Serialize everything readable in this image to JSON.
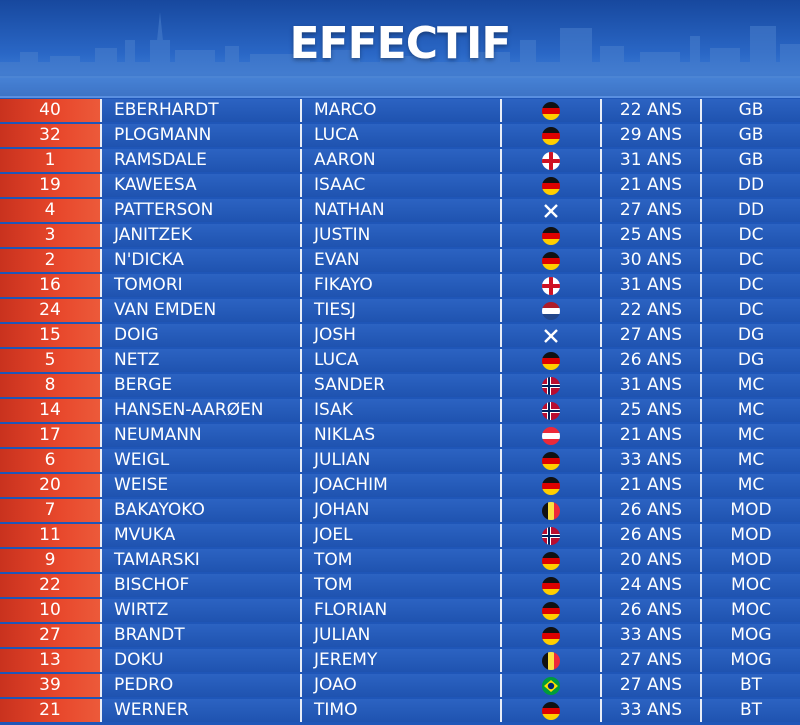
{
  "title": "EFFECTIF",
  "players": [
    {
      "number": "40",
      "last_name": "EBERHARDT",
      "first_name": "MARCO",
      "flag": "germany",
      "age": "22 ANS",
      "position": "GB"
    },
    {
      "number": "32",
      "last_name": "PLOGMANN",
      "first_name": "LUCA",
      "flag": "germany",
      "age": "29 ANS",
      "position": "GB"
    },
    {
      "number": "1",
      "last_name": "RAMSDALE",
      "first_name": "AARON",
      "flag": "england",
      "age": "31 ANS",
      "position": "GB"
    },
    {
      "number": "19",
      "last_name": "KAWEESA",
      "first_name": "ISAAC",
      "flag": "germany",
      "age": "21 ANS",
      "position": "DD"
    },
    {
      "number": "4",
      "last_name": "PATTERSON",
      "first_name": "NATHAN",
      "flag": "scotland",
      "age": "27 ANS",
      "position": "DD"
    },
    {
      "number": "3",
      "last_name": "JANITZEK",
      "first_name": "JUSTIN",
      "flag": "germany",
      "age": "25 ANS",
      "position": "DC"
    },
    {
      "number": "2",
      "last_name": "N'DICKA",
      "first_name": "EVAN",
      "flag": "germany",
      "age": "30 ANS",
      "position": "DC"
    },
    {
      "number": "16",
      "last_name": "TOMORI",
      "first_name": "FIKAYO",
      "flag": "england",
      "age": "31 ANS",
      "position": "DC"
    },
    {
      "number": "24",
      "last_name": "VAN EMDEN",
      "first_name": "TIESJ",
      "flag": "netherlands",
      "age": "22 ANS",
      "position": "DC"
    },
    {
      "number": "15",
      "last_name": "DOIG",
      "first_name": "JOSH",
      "flag": "scotland",
      "age": "27 ANS",
      "position": "DG"
    },
    {
      "number": "5",
      "last_name": "NETZ",
      "first_name": "LUCA",
      "flag": "germany",
      "age": "26 ANS",
      "position": "DG"
    },
    {
      "number": "8",
      "last_name": "BERGE",
      "first_name": "SANDER",
      "flag": "norway",
      "age": "31 ANS",
      "position": "MC"
    },
    {
      "number": "14",
      "last_name": "HANSEN-AARØEN",
      "first_name": "ISAK",
      "flag": "norway",
      "age": "25 ANS",
      "position": "MC"
    },
    {
      "number": "17",
      "last_name": "NEUMANN",
      "first_name": "NIKLAS",
      "flag": "austria",
      "age": "21 ANS",
      "position": "MC"
    },
    {
      "number": "6",
      "last_name": "WEIGL",
      "first_name": "JULIAN",
      "flag": "germany",
      "age": "33 ANS",
      "position": "MC"
    },
    {
      "number": "20",
      "last_name": "WEISE",
      "first_name": "JOACHIM",
      "flag": "germany",
      "age": "21 ANS",
      "position": "MC"
    },
    {
      "number": "7",
      "last_name": "BAKAYOKO",
      "first_name": "JOHAN",
      "flag": "belgium",
      "age": "26 ANS",
      "position": "MOD"
    },
    {
      "number": "11",
      "last_name": "MVUKA",
      "first_name": "JOEL",
      "flag": "norway",
      "age": "26 ANS",
      "position": "MOD"
    },
    {
      "number": "9",
      "last_name": "TAMARSKI",
      "first_name": "TOM",
      "flag": "germany",
      "age": "20 ANS",
      "position": "MOD"
    },
    {
      "number": "22",
      "last_name": "BISCHOF",
      "first_name": "TOM",
      "flag": "germany",
      "age": "24 ANS",
      "position": "MOC"
    },
    {
      "number": "10",
      "last_name": "WIRTZ",
      "first_name": "FLORIAN",
      "flag": "germany",
      "age": "26 ANS",
      "position": "MOC"
    },
    {
      "number": "27",
      "last_name": "BRANDT",
      "first_name": "JULIAN",
      "flag": "germany",
      "age": "33 ANS",
      "position": "MOG"
    },
    {
      "number": "13",
      "last_name": "DOKU",
      "first_name": "JEREMY",
      "flag": "belgium",
      "age": "27 ANS",
      "position": "MOG"
    },
    {
      "number": "39",
      "last_name": "PEDRO",
      "first_name": "JOAO",
      "flag": "brazil",
      "age": "27 ANS",
      "position": "BT"
    },
    {
      "number": "21",
      "last_name": "WERNER",
      "first_name": "TIMO",
      "flag": "germany",
      "age": "33 ANS",
      "position": "BT"
    }
  ]
}
